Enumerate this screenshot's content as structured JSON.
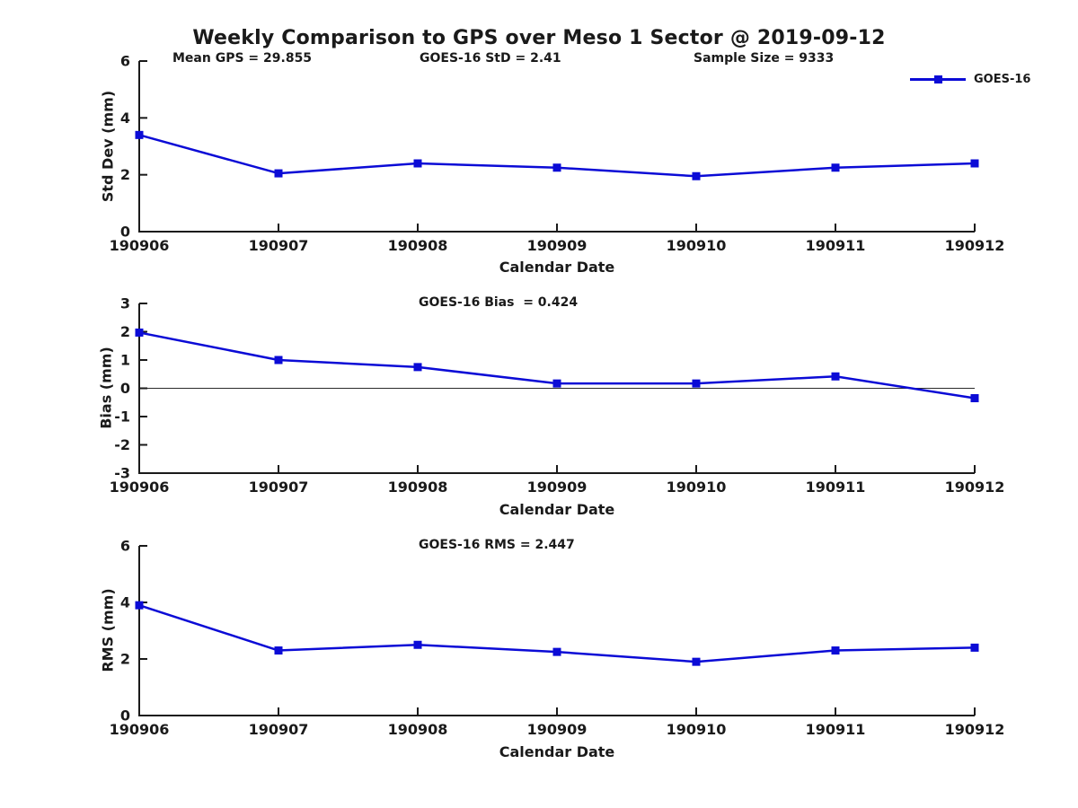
{
  "title": "Weekly Comparison to GPS over Meso 1 Sector @ 2019-09-12",
  "legend": {
    "label": "GOES-16"
  },
  "colors": {
    "series": "#0b0bd6",
    "axis": "#1a1a1a",
    "zero_line": "#2a2a2a",
    "background": "#ffffff"
  },
  "chart_data": [
    {
      "type": "line",
      "categories": [
        "190906",
        "190907",
        "190908",
        "190909",
        "190910",
        "190911",
        "190912"
      ],
      "series": [
        {
          "name": "GOES-16",
          "values": [
            3.4,
            2.05,
            2.4,
            2.25,
            1.95,
            2.25,
            2.4
          ]
        }
      ],
      "xlabel": "Calendar Date",
      "ylabel": "Std Dev (mm)",
      "ylim": [
        0,
        6
      ],
      "yticks": [
        0,
        2,
        4,
        6
      ],
      "grid": false,
      "legend_position": "top-right",
      "zero_line": false,
      "annotations": {
        "left": "Mean GPS = 29.855",
        "center": "GOES-16 StD = 2.41",
        "right": "Sample Size = 9333"
      }
    },
    {
      "type": "line",
      "categories": [
        "190906",
        "190907",
        "190908",
        "190909",
        "190910",
        "190911",
        "190912"
      ],
      "series": [
        {
          "name": "GOES-16",
          "values": [
            1.97,
            1.0,
            0.75,
            0.17,
            0.17,
            0.42,
            -0.35
          ]
        }
      ],
      "xlabel": "Calendar Date",
      "ylabel": "Bias (mm)",
      "ylim": [
        -3,
        3
      ],
      "yticks": [
        -3,
        -2,
        -1,
        0,
        1,
        2,
        3
      ],
      "grid": false,
      "zero_line": true,
      "annotation": "GOES-16 Bias  = 0.424"
    },
    {
      "type": "line",
      "categories": [
        "190906",
        "190907",
        "190908",
        "190909",
        "190910",
        "190911",
        "190912"
      ],
      "series": [
        {
          "name": "GOES-16",
          "values": [
            3.9,
            2.3,
            2.5,
            2.25,
            1.9,
            2.3,
            2.4
          ]
        }
      ],
      "xlabel": "Calendar Date",
      "ylabel": "RMS (mm)",
      "ylim": [
        0,
        6
      ],
      "yticks": [
        0,
        2,
        4,
        6
      ],
      "grid": false,
      "zero_line": false,
      "annotation": "GOES-16 RMS = 2.447"
    }
  ]
}
